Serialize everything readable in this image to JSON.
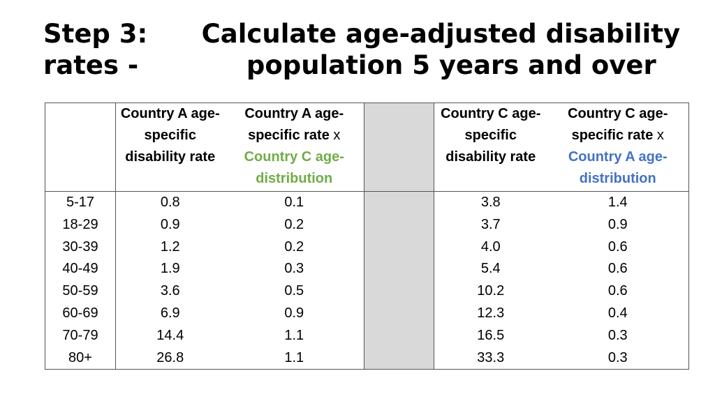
{
  "title": {
    "line1": "Step 3:      Calculate age-adjusted disability",
    "line2": "rates -            population 5 years and over"
  },
  "headers": {
    "age": "",
    "a_rate": "Country A age-specific disability rate",
    "a_rate_x_pre": "Country A age-specific rate",
    "a_rate_x_times": "x",
    "a_rate_x_post": "Country C age-distribution",
    "c_rate": "Country C age-specific disability rate",
    "c_rate_x_pre": "Country C age-specific rate",
    "c_rate_x_times": "x",
    "c_rate_x_post": "Country A age-distribution"
  },
  "rows": [
    {
      "age": "5-17",
      "a_rate": "0.8",
      "a_x": "0.1",
      "c_rate": "3.8",
      "c_x": "1.4"
    },
    {
      "age": "18-29",
      "a_rate": "0.9",
      "a_x": "0.2",
      "c_rate": "3.7",
      "c_x": "0.9"
    },
    {
      "age": "30-39",
      "a_rate": "1.2",
      "a_x": "0.2",
      "c_rate": "4.0",
      "c_x": "0.6"
    },
    {
      "age": "40-49",
      "a_rate": "1.9",
      "a_x": "0.3",
      "c_rate": "5.4",
      "c_x": "0.6"
    },
    {
      "age": "50-59",
      "a_rate": "3.6",
      "a_x": "0.5",
      "c_rate": "10.2",
      "c_x": "0.6"
    },
    {
      "age": "60-69",
      "a_rate": "6.9",
      "a_x": "0.9",
      "c_rate": "12.3",
      "c_x": "0.4"
    },
    {
      "age": "70-79",
      "a_rate": "14.4",
      "a_x": "1.1",
      "c_rate": "16.5",
      "c_x": "0.3"
    },
    {
      "age": "80+",
      "a_rate": "26.8",
      "a_x": "1.1",
      "c_rate": "33.3",
      "c_x": "0.3"
    }
  ],
  "colors": {
    "country_c_highlight": "#70ad47",
    "country_a_highlight": "#4472c4",
    "gap_fill": "#d9d9d9"
  }
}
